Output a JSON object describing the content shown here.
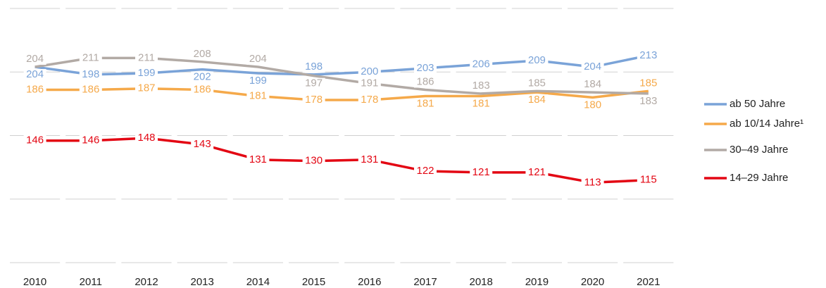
{
  "chart_data": {
    "type": "line",
    "categories": [
      "2010",
      "2011",
      "2012",
      "2013",
      "2014",
      "2015",
      "2016",
      "2017",
      "2018",
      "2019",
      "2020",
      "2021"
    ],
    "series": [
      {
        "name": "ab 50 Jahre",
        "color": "#7aa3d8",
        "values": [
          204,
          198,
          199,
          202,
          199,
          198,
          200,
          203,
          206,
          209,
          204,
          213
        ]
      },
      {
        "name": "ab 10/14 Jahre¹",
        "color": "#f5a94a",
        "values": [
          186,
          186,
          187,
          186,
          181,
          178,
          178,
          181,
          181,
          184,
          180,
          185
        ]
      },
      {
        "name": "30–49 Jahre",
        "color": "#b2aaa5",
        "values": [
          204,
          211,
          211,
          208,
          204,
          197,
          191,
          186,
          183,
          185,
          184,
          183
        ]
      },
      {
        "name": "14–29 Jahre",
        "color": "#e30613",
        "values": [
          146,
          146,
          148,
          143,
          131,
          130,
          131,
          122,
          121,
          121,
          113,
          115
        ]
      }
    ],
    "ylim": [
      50,
      250
    ],
    "yticks": [
      50,
      100,
      150,
      200,
      250
    ],
    "grid": true,
    "legend": "right"
  }
}
